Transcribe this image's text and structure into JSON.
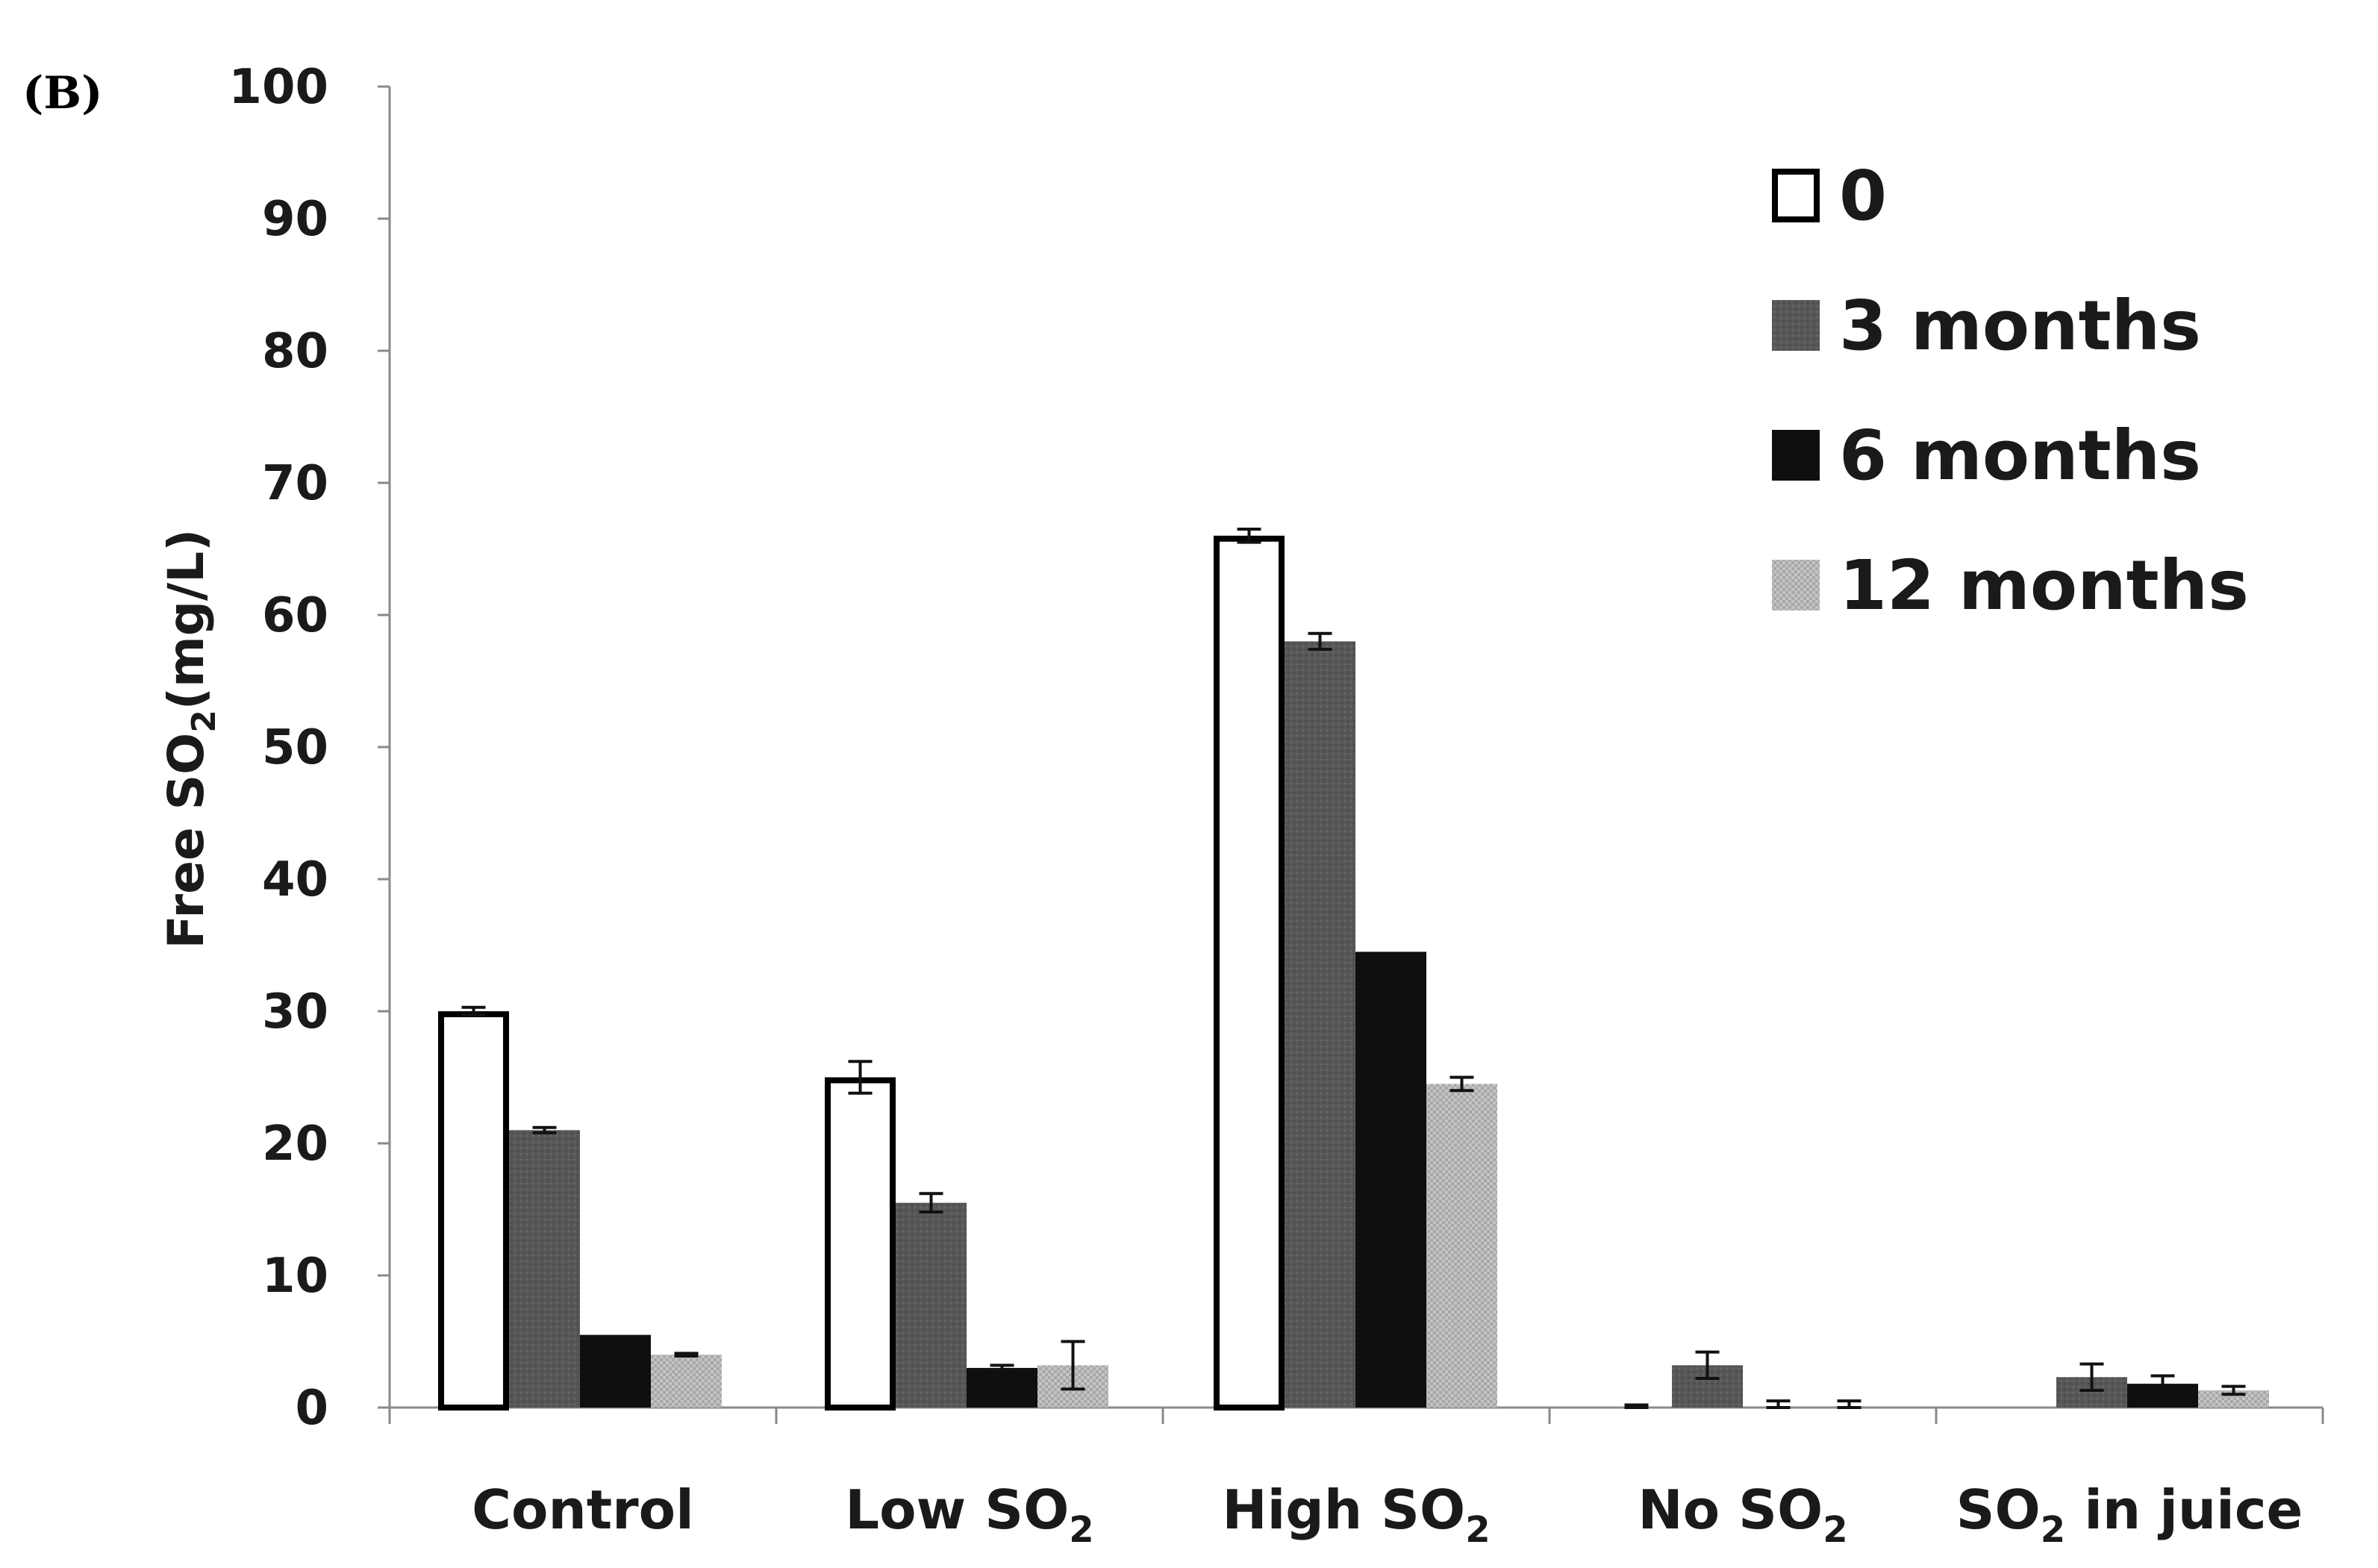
{
  "panel_label": "(B)",
  "chart_data": {
    "type": "bar",
    "title": "",
    "xlabel": "",
    "ylabel_main": "Free SO",
    "ylabel_sub": "2",
    "ylabel_tail": "(mg/L)",
    "ylim": [
      0,
      100
    ],
    "yticks": [
      "0",
      "10",
      "20",
      "30",
      "40",
      "50",
      "60",
      "70",
      "80",
      "90",
      "100"
    ],
    "grid": false,
    "legend_position": "top-right",
    "categories": [
      {
        "main": "Control",
        "sub": "",
        "tail": ""
      },
      {
        "main": "Low SO",
        "sub": "2",
        "tail": ""
      },
      {
        "main": "High SO",
        "sub": "2",
        "tail": ""
      },
      {
        "main": "No SO",
        "sub": "2",
        "tail": ""
      },
      {
        "main": "SO",
        "sub": "2",
        "tail": " in juice"
      }
    ],
    "series": [
      {
        "name": "0",
        "style": "white",
        "values": [
          30,
          25,
          66,
          0,
          0
        ],
        "errors": [
          0.3,
          1.2,
          0.5,
          0.2,
          0
        ]
      },
      {
        "name": "3 months",
        "style": "dark-gray",
        "values": [
          21,
          15.5,
          58,
          3.2,
          2.3
        ],
        "errors": [
          0.2,
          0.7,
          0.6,
          1.0,
          1.0
        ]
      },
      {
        "name": "6 months",
        "style": "black",
        "values": [
          5.5,
          3,
          34.5,
          0,
          1.8
        ],
        "errors": [
          0,
          0.2,
          0,
          0.5,
          0.6
        ]
      },
      {
        "name": "12 months",
        "style": "light-gray",
        "values": [
          4,
          3.2,
          24.5,
          0,
          1.3
        ],
        "errors": [
          0.1,
          1.8,
          0.5,
          0.5,
          0.3
        ]
      }
    ],
    "colors": {
      "white": "#ffffff",
      "dark-gray": "#575757",
      "black": "#0f0f0f",
      "light-gray": "#bdbdbd",
      "axis": "#8a8a8a",
      "text": "#1a1a1a"
    }
  }
}
